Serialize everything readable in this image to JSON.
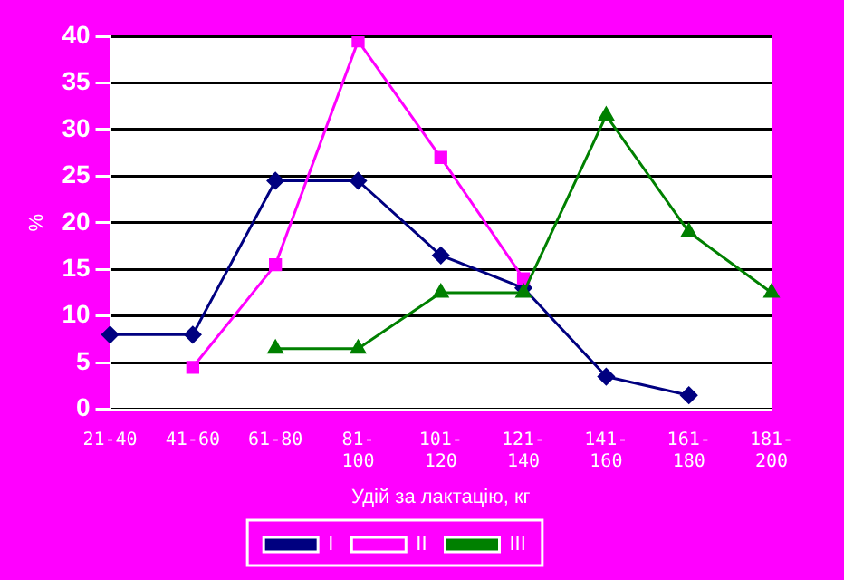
{
  "chart_data": {
    "type": "line",
    "xlabel": "Удій за лактацію, кг",
    "ylabel": "%",
    "categories": [
      "21-40",
      "41-60",
      "61-80",
      "81-100",
      "101-120",
      "121-140",
      "141-160",
      "161-180",
      "181-200"
    ],
    "series": [
      {
        "name": "I",
        "color": "#000080",
        "marker": "diamond",
        "values": [
          8,
          8,
          24.5,
          24.5,
          16.5,
          13,
          3.5,
          1.5,
          null
        ]
      },
      {
        "name": "II",
        "color": "#ff00ff",
        "marker": "square",
        "values": [
          null,
          4.5,
          15.5,
          39.5,
          27,
          14,
          null,
          null,
          null
        ]
      },
      {
        "name": "III",
        "color": "#008000",
        "marker": "triangle",
        "values": [
          null,
          null,
          6.5,
          6.5,
          12.5,
          12.5,
          31.5,
          19,
          12.5
        ]
      }
    ],
    "ylim": [
      0,
      40
    ],
    "yticks": [
      0,
      5,
      10,
      15,
      20,
      25,
      30,
      35,
      40
    ],
    "grid": "y",
    "legend": "bottom"
  }
}
